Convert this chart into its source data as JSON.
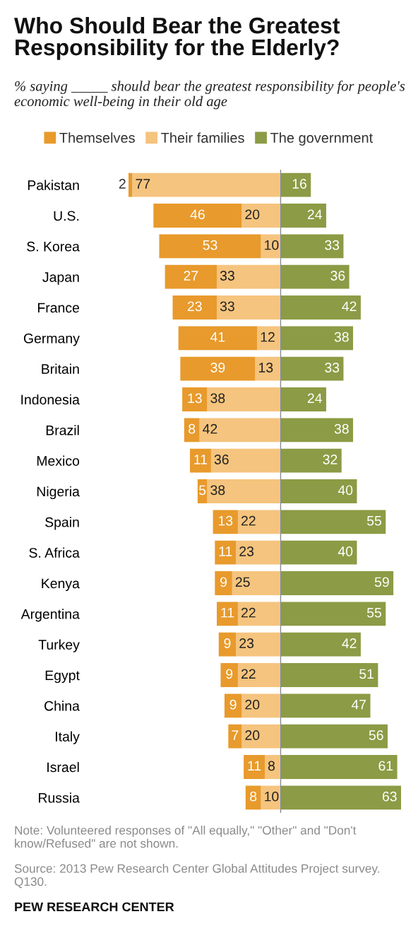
{
  "chart_data": [
    {
      "type": "bar",
      "orientation": "horizontal",
      "stacked": true,
      "title": "Who Should Bear the Greatest Responsibility for the Elderly?",
      "subtitle": "% saying _____ should bear the greatest responsibility for people's economic well-being in their old age",
      "categories": [
        "Pakistan",
        "U.S.",
        "S. Korea",
        "Japan",
        "France",
        "Germany",
        "Britain",
        "Indonesia",
        "Brazil",
        "Mexico",
        "Nigeria",
        "Spain",
        "S. Africa",
        "Kenya",
        "Argentina",
        "Turkey",
        "Egypt",
        "China",
        "Italy",
        "Israel",
        "Russia"
      ],
      "series": [
        {
          "name": "Their families",
          "color": "#f5c47e",
          "values": [
            77,
            20,
            10,
            33,
            33,
            12,
            13,
            38,
            42,
            36,
            38,
            22,
            23,
            25,
            22,
            23,
            22,
            20,
            20,
            8,
            10
          ]
        },
        {
          "name": "Themselves",
          "color": "#e89a2c",
          "values": [
            2,
            46,
            53,
            27,
            23,
            41,
            39,
            13,
            8,
            11,
            5,
            13,
            11,
            9,
            11,
            9,
            9,
            9,
            7,
            11,
            8
          ]
        }
      ],
      "data_labels": true,
      "legend": "top",
      "tick_labels": "y",
      "grid": false
    },
    {
      "type": "bar",
      "orientation": "horizontal",
      "categories": [
        null,
        null,
        null,
        null,
        null,
        null,
        null,
        null,
        null,
        null,
        null,
        null,
        null,
        null,
        null,
        null,
        null,
        null,
        null,
        null,
        null
      ],
      "series": [
        {
          "name": "The government",
          "color": "#8c9b45",
          "values": [
            16,
            24,
            33,
            36,
            42,
            38,
            33,
            24,
            38,
            32,
            40,
            55,
            40,
            59,
            55,
            42,
            51,
            47,
            56,
            61,
            63
          ]
        }
      ],
      "data_labels": true,
      "legend": "top",
      "tick_labels": false,
      "grid": false,
      "annotations": [
        "Note: Volunteered responses of \"All equally,\" \"Other\" and \"Don't know/Refused\" are not shown.",
        "Source: 2013 Pew Research Center Global Attitudes Project survey. Q130.",
        "PEW RESEARCH CENTER"
      ]
    }
  ]
}
